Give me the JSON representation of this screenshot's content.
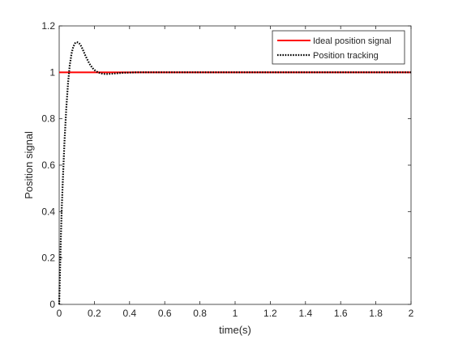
{
  "chart_data": {
    "type": "line",
    "xlabel": "time(s)",
    "ylabel": "Position signal",
    "xlim": [
      0,
      2
    ],
    "ylim": [
      0,
      1.2
    ],
    "grid": false,
    "legend_position": "top-right",
    "x_ticks": [
      "0",
      "0.2",
      "0.4",
      "0.6",
      "0.8",
      "1",
      "1.2",
      "1.4",
      "1.6",
      "1.8",
      "2"
    ],
    "y_ticks": [
      "0",
      "0.2",
      "0.4",
      "0.6",
      "0.8",
      "1",
      "1.2"
    ],
    "series": [
      {
        "name": "Ideal position signal",
        "color": "#ff0000",
        "style": "solid",
        "x": [
          0,
          2
        ],
        "y": [
          1,
          1
        ]
      },
      {
        "name": "Position tracking",
        "color": "#000000",
        "style": "dotted",
        "x": [
          0,
          0.005,
          0.01,
          0.015,
          0.02,
          0.03,
          0.04,
          0.05,
          0.06,
          0.07,
          0.08,
          0.09,
          0.1,
          0.11,
          0.12,
          0.13,
          0.14,
          0.15,
          0.16,
          0.17,
          0.18,
          0.19,
          0.2,
          0.22,
          0.24,
          0.26,
          0.28,
          0.3,
          0.33,
          0.36,
          0.4,
          0.45,
          0.5,
          0.6,
          0.8,
          1.0,
          1.5,
          2.0
        ],
        "y": [
          0,
          0.15,
          0.3,
          0.42,
          0.52,
          0.7,
          0.84,
          0.95,
          1.03,
          1.08,
          1.11,
          1.125,
          1.13,
          1.128,
          1.12,
          1.105,
          1.088,
          1.07,
          1.055,
          1.04,
          1.028,
          1.018,
          1.01,
          1.0,
          0.995,
          0.993,
          0.993,
          0.994,
          0.996,
          0.998,
          0.999,
          1.0,
          1.0,
          1.0,
          1.0,
          1.0,
          1.0,
          1.0
        ]
      }
    ]
  }
}
